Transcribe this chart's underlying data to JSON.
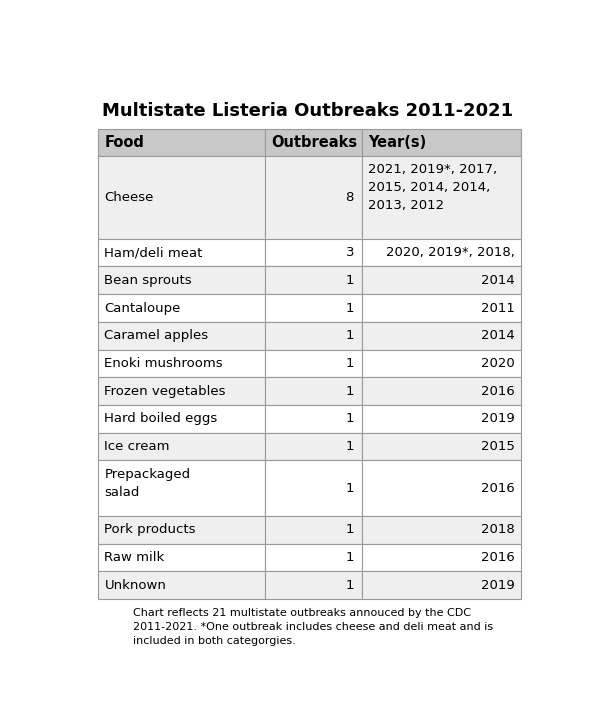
{
  "title": "Multistate Listeria Outbreaks 2011-2021",
  "col_headers": [
    "Food",
    "Outbreaks",
    "Year(s)"
  ],
  "rows": [
    [
      "Cheese",
      "8",
      "2021, 2019*, 2017,\n2015, 2014, 2014,\n2013, 2012"
    ],
    [
      "Ham/deli meat",
      "3",
      "2020, 2019*, 2018,"
    ],
    [
      "Bean sprouts",
      "1",
      "2014"
    ],
    [
      "Cantaloupe",
      "1",
      "2011"
    ],
    [
      "Caramel apples",
      "1",
      "2014"
    ],
    [
      "Enoki mushrooms",
      "1",
      "2020"
    ],
    [
      "Frozen vegetables",
      "1",
      "2016"
    ],
    [
      "Hard boiled eggs",
      "1",
      "2019"
    ],
    [
      "Ice cream",
      "1",
      "2015"
    ],
    [
      "Prepackaged\nsalad",
      "1",
      "2016"
    ],
    [
      "Pork products",
      "1",
      "2018"
    ],
    [
      "Raw milk",
      "1",
      "2016"
    ],
    [
      "Unknown",
      "1",
      "2019"
    ]
  ],
  "footnote": "Chart reflects 21 multistate outbreaks annouced by the CDC\n2011-2021. *One outbreak includes cheese and deli meat and is\nincluded in both categorgies.",
  "header_bg": "#c8c8c8",
  "row_bg_even": "#efefef",
  "row_bg_odd": "#ffffff",
  "border_color": "#999999",
  "text_color": "#000000",
  "title_fontsize": 13,
  "header_fontsize": 10.5,
  "cell_fontsize": 9.5,
  "footnote_fontsize": 8,
  "background_color": "#ffffff"
}
